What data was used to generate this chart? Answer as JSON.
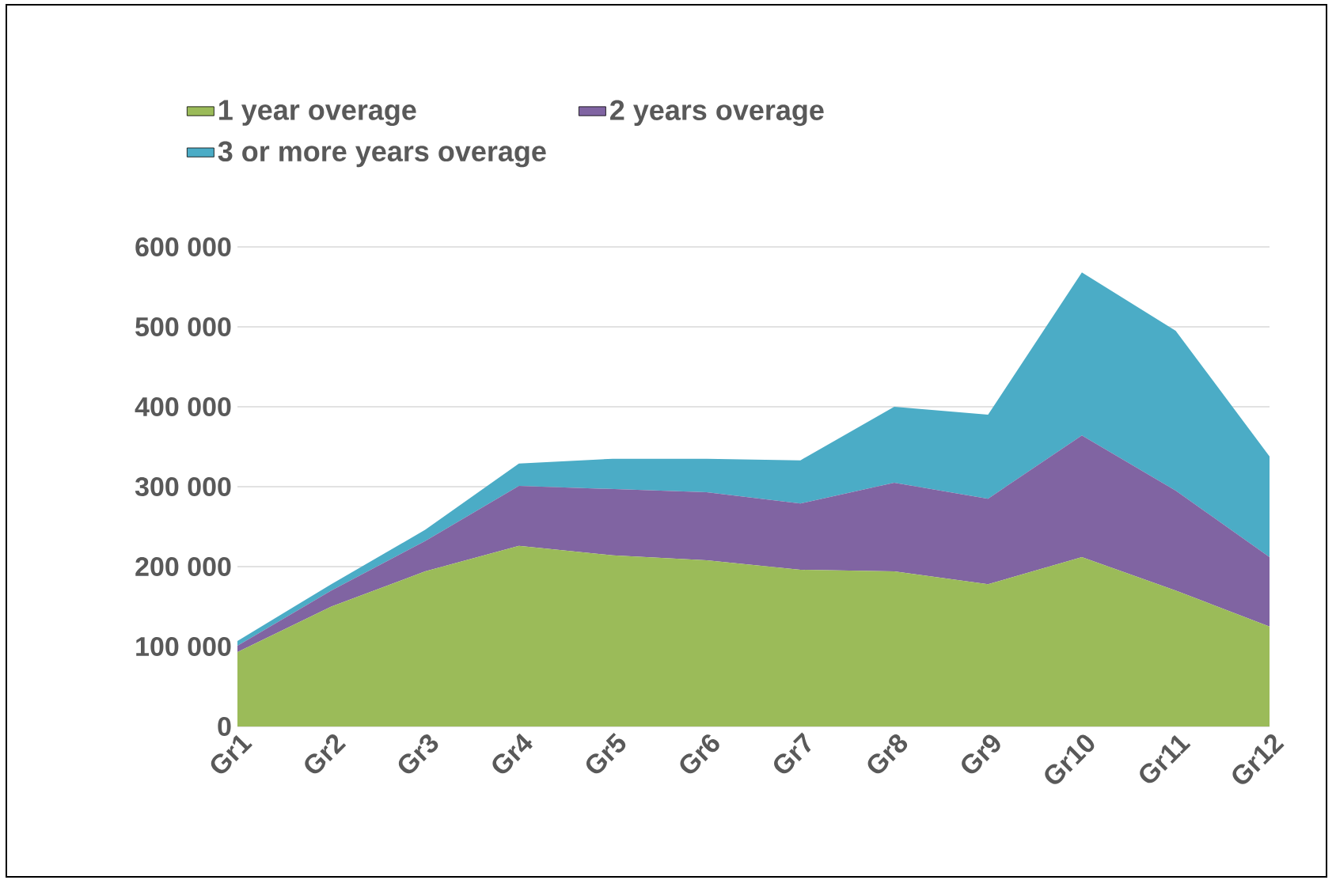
{
  "chart_data": {
    "type": "area",
    "stacked": true,
    "categories": [
      "Gr1",
      "Gr2",
      "Gr3",
      "Gr4",
      "Gr5",
      "Gr6",
      "Gr7",
      "Gr8",
      "Gr9",
      "Gr10",
      "Gr11",
      "Gr12"
    ],
    "series": [
      {
        "name": "1 year overage",
        "color": "#9bbb59",
        "values": [
          93000,
          150000,
          194000,
          226000,
          214000,
          208000,
          196000,
          194000,
          178000,
          212000,
          170000,
          125000
        ]
      },
      {
        "name": "2 years overage",
        "color": "#8064a2",
        "values": [
          8000,
          20000,
          38000,
          75000,
          83000,
          85000,
          83000,
          111000,
          107000,
          152000,
          125000,
          87000
        ]
      },
      {
        "name": "3 or more years overage",
        "color": "#4bacc6",
        "values": [
          6000,
          8000,
          14000,
          28000,
          38000,
          42000,
          54000,
          95000,
          105000,
          204000,
          200000,
          126000
        ]
      }
    ],
    "ylim": [
      0,
      600000
    ],
    "yticks": [
      {
        "value": 0,
        "label": "0"
      },
      {
        "value": 100000,
        "label": "100 000"
      },
      {
        "value": 200000,
        "label": "200 000"
      },
      {
        "value": 300000,
        "label": "300 000"
      },
      {
        "value": 400000,
        "label": "400 000"
      },
      {
        "value": 500000,
        "label": "500 000"
      },
      {
        "value": 600000,
        "label": "600 000"
      }
    ],
    "grid": "y",
    "legend": "top"
  }
}
